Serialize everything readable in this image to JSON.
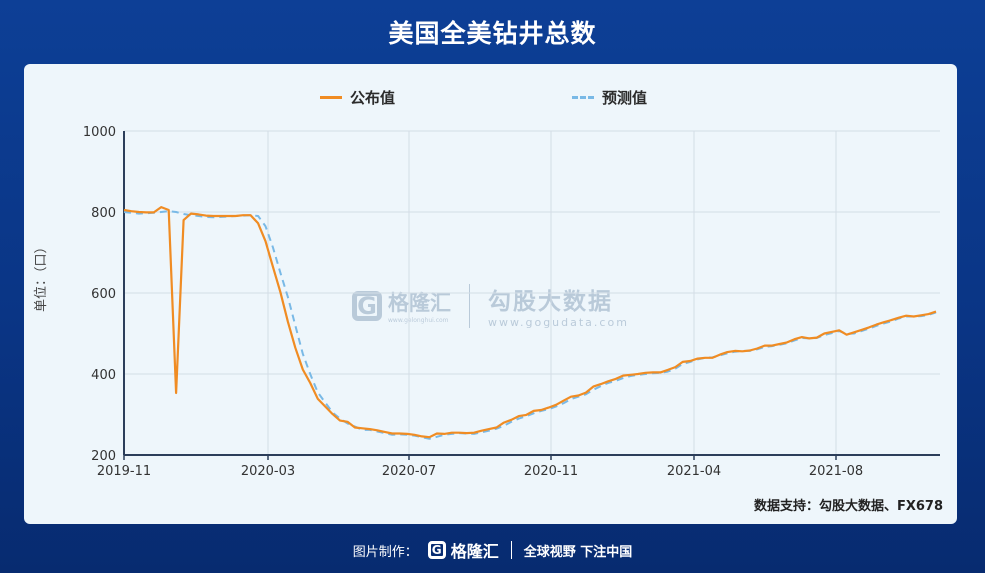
{
  "page": {
    "title": "美国全美钻井总数",
    "source_note": "数据支持：勾股大数据、FX678",
    "footer": {
      "made_by": "图片制作：",
      "brand": "格隆汇",
      "slogan": "全球视野 下注中国"
    },
    "watermark": {
      "brand": "格隆汇",
      "brand_url": "www.gelonghui.com",
      "partner": "勾股大数据",
      "partner_url": "www.gogudata.com"
    }
  },
  "colors": {
    "published": "#f08c23",
    "forecast": "#79b9e6",
    "axis": "#2c3e5a",
    "grid": "#d3dde6"
  },
  "chart_data": {
    "type": "line",
    "title": "美国全美钻井总数",
    "ylabel": "单位：（口）",
    "xlabel": "",
    "ylim": [
      200,
      1000
    ],
    "yticks": [
      200,
      400,
      600,
      800,
      1000
    ],
    "xticks": [
      "2019-11",
      "2020-03",
      "2020-07",
      "2020-11",
      "2021-04",
      "2021-08"
    ],
    "grid": true,
    "legend_position": "top-center",
    "series": [
      {
        "name": "公布值",
        "style": "solid",
        "color": "#f08c23",
        "values": [
          805,
          802,
          800,
          799,
          799,
          812,
          805,
          353,
          780,
          796,
          794,
          791,
          790,
          790,
          790,
          790,
          792,
          792,
          772,
          728,
          664,
          602,
          529,
          465,
          411,
          378,
          339,
          320,
          301,
          285,
          282,
          268,
          266,
          264,
          261,
          257,
          253,
          253,
          252,
          250,
          246,
          244,
          253,
          252,
          255,
          255,
          254,
          255,
          260,
          264,
          268,
          280,
          287,
          296,
          299,
          309,
          311,
          317,
          324,
          334,
          344,
          347,
          354,
          369,
          375,
          382,
          388,
          396,
          398,
          400,
          403,
          404,
          404,
          410,
          417,
          430,
          432,
          438,
          440,
          440,
          448,
          454,
          457,
          456,
          458,
          463,
          470,
          470,
          474,
          478,
          486,
          491,
          488,
          490,
          500,
          504,
          508,
          497,
          503,
          509,
          515,
          522,
          528,
          533,
          539,
          544,
          542,
          545,
          548,
          554
        ]
      },
      {
        "name": "预测值",
        "style": "dashed",
        "color": "#79b9e6",
        "values": [
          800,
          798,
          796,
          797,
          798,
          800,
          802,
          800,
          795,
          792,
          790,
          788,
          787,
          788,
          789,
          790,
          791,
          792,
          790,
          765,
          712,
          650,
          590,
          520,
          450,
          400,
          355,
          330,
          305,
          290,
          278,
          270,
          262,
          262,
          258,
          254,
          250,
          251,
          250,
          248,
          244,
          240,
          245,
          250,
          252,
          254,
          253,
          252,
          256,
          260,
          265,
          272,
          282,
          290,
          296,
          303,
          309,
          313,
          320,
          328,
          338,
          344,
          350,
          361,
          370,
          378,
          383,
          390,
          395,
          398,
          400,
          402,
          403,
          406,
          413,
          425,
          430,
          436,
          440,
          441,
          446,
          451,
          455,
          457,
          457,
          461,
          467,
          469,
          472,
          476,
          483,
          489,
          488,
          489,
          496,
          501,
          506,
          499,
          500,
          506,
          512,
          519,
          525,
          530,
          537,
          542,
          542,
          543,
          546,
          552
        ]
      }
    ]
  }
}
